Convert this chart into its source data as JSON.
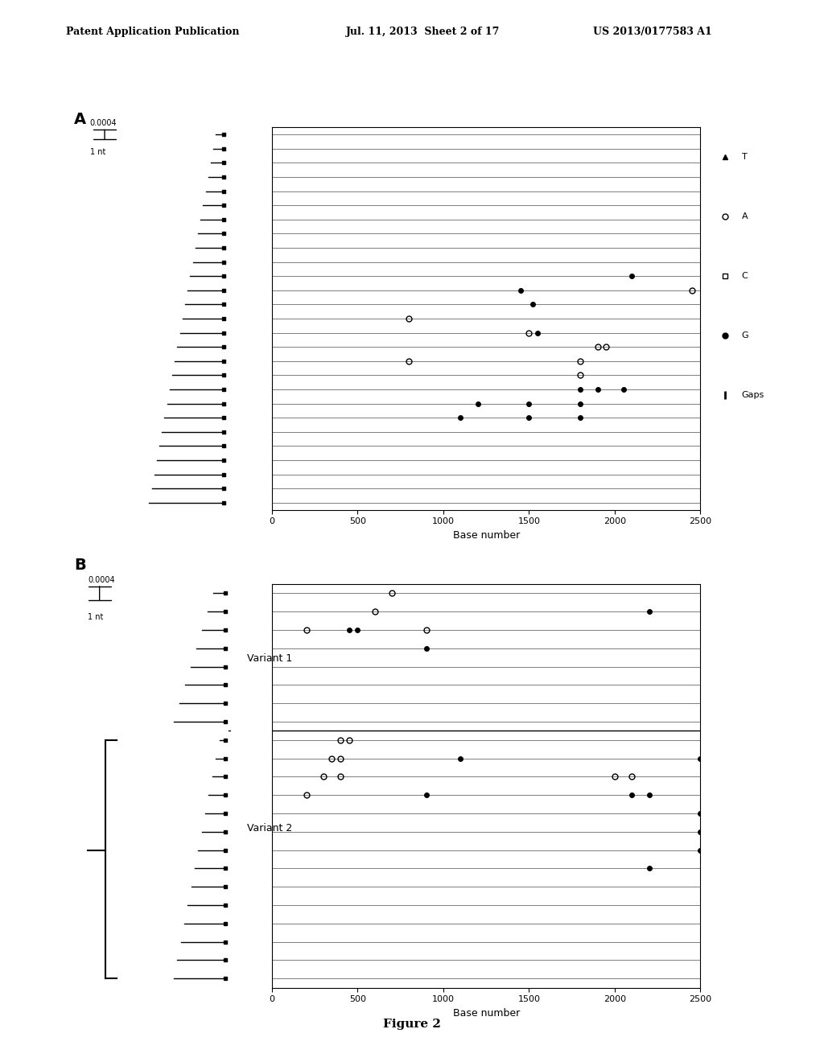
{
  "title": "Figure 2",
  "header_left": "Patent Application Publication",
  "header_mid": "Jul. 11, 2013  Sheet 2 of 17",
  "header_right": "US 2013/0177583 A1",
  "panel_A_label": "A",
  "panel_B_label": "B",
  "xlabel": "Base number",
  "xticks": [
    0,
    500,
    1000,
    1500,
    2000,
    2500
  ],
  "xmax": 2500,
  "scale_label_top": "0.0004",
  "scale_label_bot": "1 nt",
  "legend_items": [
    "T",
    "A",
    "C",
    "G",
    "Gaps"
  ],
  "variant1_label": "Variant 1",
  "variant2_label": "Variant 2",
  "num_rows_A": 27,
  "num_rows_B": 22,
  "panelA_mutations": [
    {
      "row": 10,
      "x": 2100,
      "type": "filled"
    },
    {
      "row": 11,
      "x": 1450,
      "type": "filled"
    },
    {
      "row": 11,
      "x": 2450,
      "type": "open"
    },
    {
      "row": 12,
      "x": 1520,
      "type": "filled"
    },
    {
      "row": 13,
      "x": 800,
      "type": "open"
    },
    {
      "row": 14,
      "x": 1500,
      "type": "open"
    },
    {
      "row": 14,
      "x": 1550,
      "type": "filled"
    },
    {
      "row": 15,
      "x": 1900,
      "type": "open"
    },
    {
      "row": 15,
      "x": 1950,
      "type": "open"
    },
    {
      "row": 16,
      "x": 800,
      "type": "open"
    },
    {
      "row": 16,
      "x": 1800,
      "type": "open"
    },
    {
      "row": 17,
      "x": 1800,
      "type": "open"
    },
    {
      "row": 18,
      "x": 1800,
      "type": "filled"
    },
    {
      "row": 18,
      "x": 1900,
      "type": "filled"
    },
    {
      "row": 18,
      "x": 2050,
      "type": "filled"
    },
    {
      "row": 19,
      "x": 1200,
      "type": "filled"
    },
    {
      "row": 19,
      "x": 1500,
      "type": "filled"
    },
    {
      "row": 19,
      "x": 1800,
      "type": "filled"
    },
    {
      "row": 20,
      "x": 1100,
      "type": "filled"
    },
    {
      "row": 20,
      "x": 1500,
      "type": "filled"
    },
    {
      "row": 20,
      "x": 1800,
      "type": "filled"
    }
  ],
  "panelB_v1_mutations": [
    {
      "row": 0,
      "x": 700,
      "type": "open"
    },
    {
      "row": 1,
      "x": 600,
      "type": "open"
    },
    {
      "row": 1,
      "x": 2200,
      "type": "filled"
    },
    {
      "row": 2,
      "x": 200,
      "type": "open"
    },
    {
      "row": 2,
      "x": 450,
      "type": "filled"
    },
    {
      "row": 2,
      "x": 500,
      "type": "filled"
    },
    {
      "row": 2,
      "x": 900,
      "type": "open"
    },
    {
      "row": 3,
      "x": 900,
      "type": "filled"
    }
  ],
  "panelB_v2_mutations": [
    {
      "row": 0,
      "x": 400,
      "type": "open"
    },
    {
      "row": 0,
      "x": 450,
      "type": "open"
    },
    {
      "row": 1,
      "x": 350,
      "type": "open"
    },
    {
      "row": 1,
      "x": 400,
      "type": "open"
    },
    {
      "row": 1,
      "x": 1100,
      "type": "filled"
    },
    {
      "row": 1,
      "x": 2500,
      "type": "filled"
    },
    {
      "row": 2,
      "x": 300,
      "type": "open"
    },
    {
      "row": 2,
      "x": 400,
      "type": "open"
    },
    {
      "row": 2,
      "x": 2000,
      "type": "open"
    },
    {
      "row": 2,
      "x": 2100,
      "type": "open"
    },
    {
      "row": 3,
      "x": 200,
      "type": "open"
    },
    {
      "row": 3,
      "x": 900,
      "type": "filled"
    },
    {
      "row": 3,
      "x": 2100,
      "type": "filled"
    },
    {
      "row": 3,
      "x": 2200,
      "type": "filled"
    },
    {
      "row": 4,
      "x": 2500,
      "type": "filled"
    },
    {
      "row": 5,
      "x": 2500,
      "type": "filled"
    },
    {
      "row": 6,
      "x": 2500,
      "type": "filled"
    },
    {
      "row": 7,
      "x": 2200,
      "type": "filled"
    }
  ]
}
